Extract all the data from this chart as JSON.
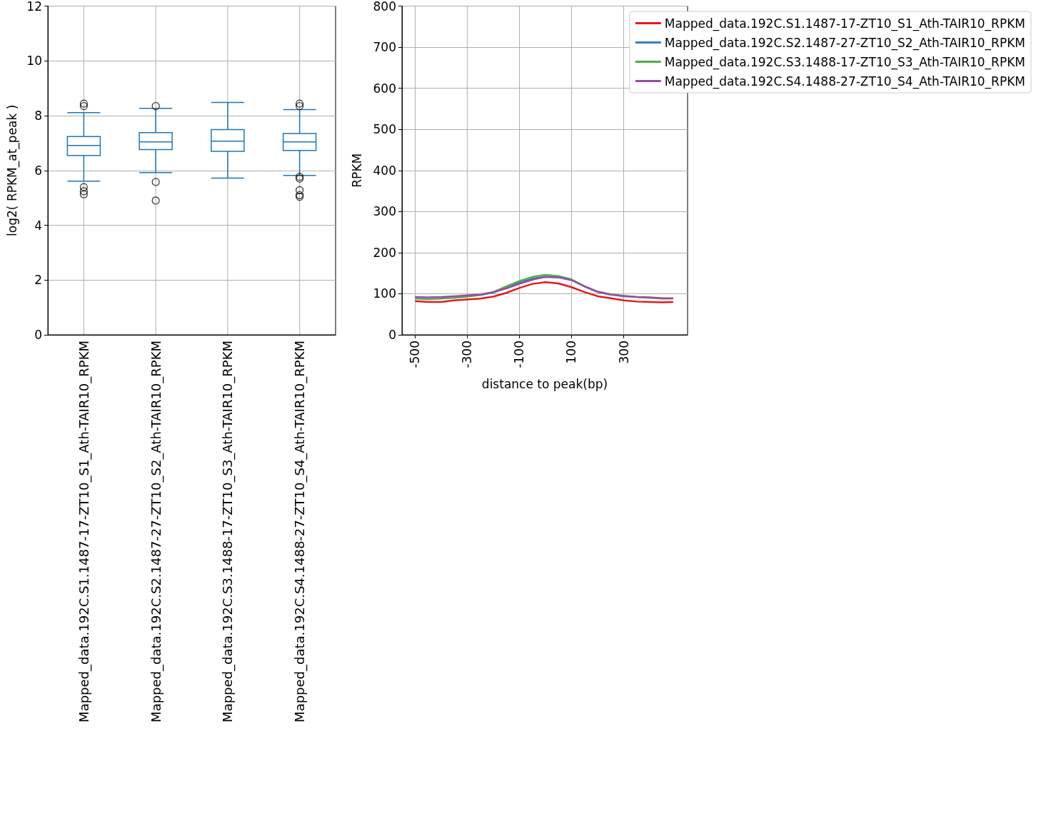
{
  "chart_data": [
    {
      "type": "box",
      "ylabel": "log2( RPKM_at_peak )",
      "categories": [
        "Mapped_data.192C.S1.1487-17-ZT10_S1_Ath-TAIR10_RPKM",
        "Mapped_data.192C.S2.1487-27-ZT10_S2_Ath-TAIR10_RPKM",
        "Mapped_data.192C.S3.1488-17-ZT10_S3_Ath-TAIR10_RPKM",
        "Mapped_data.192C.S4.1488-27-ZT10_S4_Ath-TAIR10_RPKM"
      ],
      "color": "#1f77b4",
      "boxes": [
        {
          "low": 5.61,
          "q1": 6.55,
          "median": 6.91,
          "q3": 7.24,
          "high": 8.11,
          "outliers": [
            8.44,
            8.35,
            5.39,
            5.24,
            5.13
          ]
        },
        {
          "low": 5.92,
          "q1": 6.76,
          "median": 7.04,
          "q3": 7.38,
          "high": 8.27,
          "outliers": [
            8.35,
            5.58,
            4.9
          ]
        },
        {
          "low": 5.72,
          "q1": 6.7,
          "median": 7.07,
          "q3": 7.49,
          "high": 8.48
        },
        {
          "low": 5.82,
          "q1": 6.73,
          "median": 7.04,
          "q3": 7.35,
          "high": 8.22,
          "outliers": [
            8.44,
            8.35,
            5.77,
            5.7,
            5.28,
            5.1,
            5.04
          ]
        }
      ],
      "ylim": [
        0,
        12
      ],
      "yticks": [
        0,
        2,
        4,
        6,
        8,
        10,
        12
      ],
      "grid": true
    },
    {
      "type": "line",
      "xlabel": "distance to peak(bp)",
      "ylabel": "RPKM",
      "x": [
        -500,
        -450,
        -400,
        -350,
        -300,
        -250,
        -200,
        -150,
        -100,
        -50,
        0,
        50,
        100,
        150,
        200,
        250,
        300,
        350,
        400,
        450,
        490
      ],
      "series": [
        {
          "name": "Mapped_data.192C.S1.1487-17-ZT10_S1_Ath-TAIR10_RPKM",
          "color": "#e41a1c",
          "values": [
            82,
            80,
            80,
            84,
            86,
            88,
            93,
            102,
            114,
            124,
            128,
            125,
            116,
            104,
            94,
            89,
            84,
            81,
            80,
            79,
            80
          ]
        },
        {
          "name": "Mapped_data.192C.S2.1487-27-ZT10_S2_Ath-TAIR10_RPKM",
          "color": "#377eb8",
          "values": [
            null,
            null,
            null,
            null,
            null,
            97,
            103,
            114,
            127,
            137,
            141,
            140,
            null,
            118,
            104,
            98,
            null,
            null,
            null,
            null,
            null
          ]
        },
        {
          "name": "Mapped_data.192C.S3.1488-17-ZT10_S3_Ath-TAIR10_RPKM",
          "color": "#4daf4a",
          "values": [
            88,
            87,
            88,
            90,
            93,
            97,
            104,
            118,
            131,
            141,
            146,
            143,
            135,
            118,
            105,
            98,
            95,
            92,
            90,
            88,
            88
          ]
        },
        {
          "name": "Mapped_data.192C.S4.1488-27-ZT10_S4_Ath-TAIR10_RPKM",
          "color": "#984ea3",
          "values": [
            92,
            91,
            92,
            94,
            96,
            98,
            104,
            113,
            124,
            134,
            141,
            140,
            133,
            118,
            105,
            98,
            94,
            92,
            91,
            89,
            89
          ]
        }
      ],
      "xlim": [
        -550,
        545
      ],
      "xticks": [
        -500,
        -300,
        -100,
        100,
        300
      ],
      "ylim": [
        0,
        800
      ],
      "yticks": [
        0,
        100,
        200,
        300,
        400,
        500,
        600,
        700,
        800
      ],
      "grid": true,
      "legend": "top right"
    }
  ]
}
